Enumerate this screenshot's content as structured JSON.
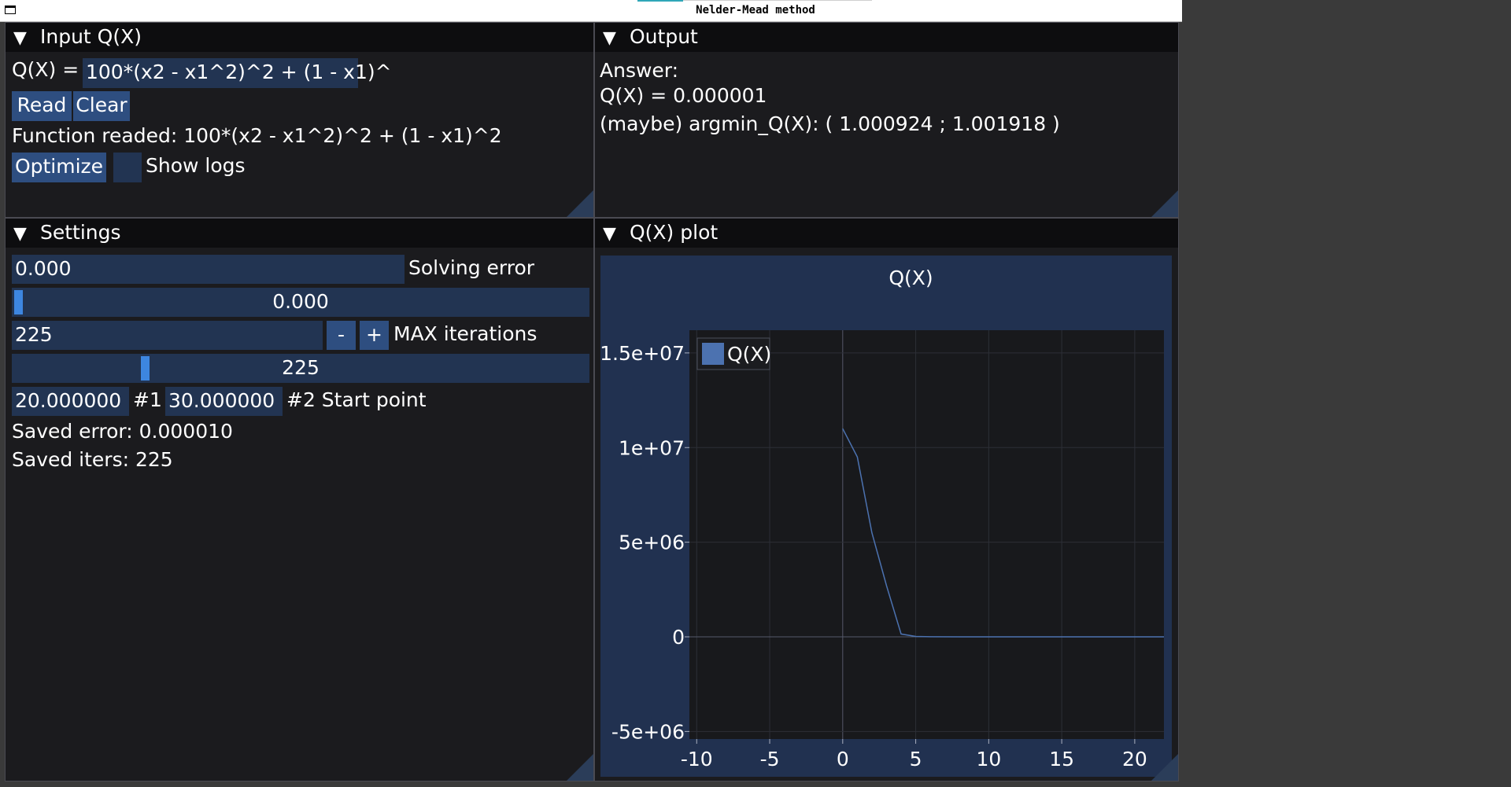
{
  "window": {
    "title": "Nelder-Mead method"
  },
  "input_panel": {
    "header": "Input Q(X)",
    "q_label": "Q(X) =",
    "function_input": "100*(x2 - x1^2)^2 + (1 - x1)^",
    "read_button": "Read",
    "clear_button": "Clear",
    "function_readed": "Function readed: 100*(x2 - x1^2)^2 + (1 - x1)^2",
    "optimize_button": "Optimize",
    "show_logs_label": "Show logs",
    "show_logs_checked": false
  },
  "output_panel": {
    "header": "Output",
    "answer_label": "Answer:",
    "q_value_line": "Q(X) =  0.000001",
    "argmin_line": "(maybe) argmin_Q(X): ( 1.000924 ; 1.001918 )"
  },
  "settings_panel": {
    "header": "Settings",
    "solving_error_value": "0.000",
    "solving_error_label": "Solving error",
    "error_slider_value": "0.000",
    "max_iter_value": "225",
    "minus_button": "-",
    "plus_button": "+",
    "max_iter_label": "MAX iterations",
    "iter_slider_value": "225",
    "start_x1": "20.000000",
    "start_x1_label": "#1",
    "start_x2": "30.000000",
    "start_x2_label": "#2 Start point",
    "saved_error": "Saved error: 0.000010",
    "saved_iters": "Saved iters: 225"
  },
  "plot_panel": {
    "header": "Q(X) plot"
  },
  "chart_data": {
    "type": "line",
    "title": "Q(X)",
    "xlabel": "",
    "ylabel": "",
    "xlim": [
      -10.5,
      22
    ],
    "ylim": [
      -5400000,
      16200000
    ],
    "xticks": [
      -10,
      -5,
      0,
      5,
      10,
      15,
      20
    ],
    "xtick_labels": [
      "-10",
      "-5",
      "0",
      "5",
      "10",
      "15",
      "20"
    ],
    "yticks": [
      -5000000,
      0,
      5000000,
      10000000,
      15000000
    ],
    "ytick_labels": [
      "-5e+06",
      "0",
      "5e+06",
      "1e+07",
      "1.5e+07"
    ],
    "grid": true,
    "legend": "top-left",
    "series": [
      {
        "name": "Q(X)",
        "color": "#4c72b0",
        "x": [
          0,
          1,
          2,
          3,
          4,
          5,
          6,
          8,
          10,
          15,
          20,
          22
        ],
        "y": [
          11000000,
          9500000,
          5500000,
          2700000,
          150000,
          20000,
          5000,
          1000,
          100,
          10,
          1,
          0
        ]
      }
    ]
  }
}
